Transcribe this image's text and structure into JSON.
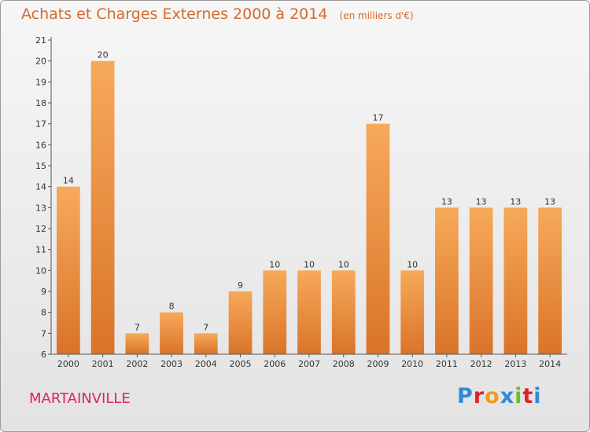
{
  "title": "Achats et Charges Externes 2000 à 2014",
  "unit_note": "(en milliers d'€)",
  "commune": "MARTAINVILLE",
  "logo": {
    "text": "Proxiti",
    "letters": [
      "P",
      "r",
      "o",
      "x",
      "i",
      "t",
      "i"
    ],
    "colors": [
      "#2f8ad8",
      "#e0222a",
      "#f39a1d",
      "#2f8ad8",
      "#6cbf2c",
      "#e0222a",
      "#2f8ad8"
    ]
  },
  "colors": {
    "title": "#d56a2b",
    "commune": "#e0225c",
    "bar_light": "#f7a95a",
    "bar_dark": "#d9742a"
  },
  "chart_data": {
    "type": "bar",
    "categories": [
      "2000",
      "2001",
      "2002",
      "2003",
      "2004",
      "2005",
      "2006",
      "2007",
      "2008",
      "2009",
      "2010",
      "2011",
      "2012",
      "2013",
      "2014"
    ],
    "values": [
      14,
      20,
      7,
      8,
      7,
      9,
      10,
      10,
      10,
      17,
      10,
      13,
      13,
      13,
      13
    ],
    "title": "Achats et Charges Externes 2000 à 2014",
    "xlabel": "",
    "ylabel": "",
    "ylim": [
      6,
      21
    ],
    "yticks": [
      6,
      7,
      8,
      9,
      10,
      11,
      12,
      13,
      14,
      15,
      16,
      17,
      18,
      19,
      20,
      21
    ],
    "grid": false,
    "data_labels": true
  }
}
